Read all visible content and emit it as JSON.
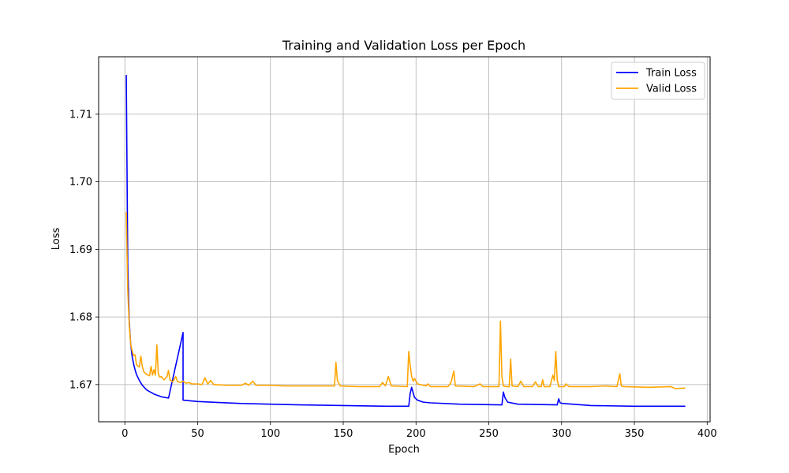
{
  "chart_data": {
    "type": "line",
    "title": "Training and Validation Loss per Epoch",
    "xlabel": "Epoch",
    "ylabel": "Loss",
    "xlim": [
      -18,
      402
    ],
    "ylim": [
      1.6645,
      1.7185
    ],
    "x_ticks": [
      0,
      50,
      100,
      150,
      200,
      250,
      300,
      350,
      400
    ],
    "y_ticks": [
      1.67,
      1.68,
      1.69,
      1.7,
      1.71
    ],
    "grid": true,
    "legend_position": "top-right",
    "series": [
      {
        "name": "Train Loss",
        "color": "#0000ff",
        "points": [
          [
            1,
            1.7158
          ],
          [
            2,
            1.688
          ],
          [
            3,
            1.6795
          ],
          [
            4,
            1.676
          ],
          [
            5,
            1.6742
          ],
          [
            6,
            1.6731
          ],
          [
            7,
            1.6722
          ],
          [
            8,
            1.6715
          ],
          [
            10,
            1.6706
          ],
          [
            12,
            1.6699
          ],
          [
            15,
            1.6692
          ],
          [
            20,
            1.6686
          ],
          [
            25,
            1.6682
          ],
          [
            30,
            1.668
          ],
          [
            40,
            1.6777
          ],
          [
            40,
            1.6677
          ],
          [
            50,
            1.6675
          ],
          [
            60,
            1.6674
          ],
          [
            80,
            1.6672
          ],
          [
            100,
            1.6671
          ],
          [
            120,
            1.667
          ],
          [
            150,
            1.6669
          ],
          [
            180,
            1.6668
          ],
          [
            194,
            1.6668
          ],
          [
            195,
            1.6668
          ],
          [
            196,
            1.6687
          ],
          [
            197,
            1.6696
          ],
          [
            198,
            1.6688
          ],
          [
            199,
            1.6681
          ],
          [
            201,
            1.6677
          ],
          [
            205,
            1.6674
          ],
          [
            210,
            1.6673
          ],
          [
            230,
            1.6671
          ],
          [
            258,
            1.667
          ],
          [
            259,
            1.667
          ],
          [
            260,
            1.6689
          ],
          [
            261,
            1.6681
          ],
          [
            263,
            1.6674
          ],
          [
            270,
            1.6671
          ],
          [
            297,
            1.667
          ],
          [
            298,
            1.6679
          ],
          [
            299,
            1.6673
          ],
          [
            301,
            1.6672
          ],
          [
            320,
            1.6669
          ],
          [
            350,
            1.6668
          ],
          [
            385,
            1.6668
          ]
        ]
      },
      {
        "name": "Valid Loss",
        "color": "#ffa500",
        "points": [
          [
            1,
            1.6955
          ],
          [
            2,
            1.684
          ],
          [
            3,
            1.679
          ],
          [
            4,
            1.676
          ],
          [
            5,
            1.675
          ],
          [
            6,
            1.6743
          ],
          [
            7,
            1.6744
          ],
          [
            8,
            1.673
          ],
          [
            9,
            1.6727
          ],
          [
            10,
            1.6726
          ],
          [
            11,
            1.6742
          ],
          [
            12,
            1.6727
          ],
          [
            13,
            1.6719
          ],
          [
            15,
            1.6715
          ],
          [
            17,
            1.6713
          ],
          [
            18,
            1.6727
          ],
          [
            19,
            1.6714
          ],
          [
            20,
            1.6722
          ],
          [
            21,
            1.6714
          ],
          [
            22,
            1.6759
          ],
          [
            23,
            1.6716
          ],
          [
            24,
            1.6711
          ],
          [
            25,
            1.6712
          ],
          [
            27,
            1.6707
          ],
          [
            29,
            1.6712
          ],
          [
            30,
            1.6721
          ],
          [
            31,
            1.6707
          ],
          [
            33,
            1.6704
          ],
          [
            35,
            1.6712
          ],
          [
            36,
            1.6705
          ],
          [
            38,
            1.6703
          ],
          [
            40,
            1.6705
          ],
          [
            42,
            1.6702
          ],
          [
            44,
            1.6703
          ],
          [
            46,
            1.6701
          ],
          [
            50,
            1.6701
          ],
          [
            53,
            1.67
          ],
          [
            55,
            1.671
          ],
          [
            57,
            1.6701
          ],
          [
            59,
            1.6706
          ],
          [
            61,
            1.67
          ],
          [
            70,
            1.6699
          ],
          [
            80,
            1.6699
          ],
          [
            83,
            1.6702
          ],
          [
            85,
            1.6699
          ],
          [
            88,
            1.6705
          ],
          [
            90,
            1.6699
          ],
          [
            100,
            1.6699
          ],
          [
            110,
            1.6698
          ],
          [
            128,
            1.6698
          ],
          [
            140,
            1.6698
          ],
          [
            144,
            1.6698
          ],
          [
            145,
            1.6733
          ],
          [
            146,
            1.6706
          ],
          [
            148,
            1.6698
          ],
          [
            160,
            1.6697
          ],
          [
            175,
            1.6697
          ],
          [
            177,
            1.6703
          ],
          [
            179,
            1.6698
          ],
          [
            181,
            1.6712
          ],
          [
            183,
            1.6698
          ],
          [
            194,
            1.6697
          ],
          [
            195,
            1.6749
          ],
          [
            196,
            1.6728
          ],
          [
            197,
            1.6712
          ],
          [
            198,
            1.6705
          ],
          [
            199,
            1.6709
          ],
          [
            201,
            1.6701
          ],
          [
            207,
            1.6698
          ],
          [
            208,
            1.6701
          ],
          [
            210,
            1.6697
          ],
          [
            222,
            1.6697
          ],
          [
            224,
            1.6703
          ],
          [
            226,
            1.672
          ],
          [
            227,
            1.6698
          ],
          [
            240,
            1.6697
          ],
          [
            244,
            1.6701
          ],
          [
            246,
            1.6697
          ],
          [
            256,
            1.6697
          ],
          [
            257,
            1.6697
          ],
          [
            258,
            1.6794
          ],
          [
            259,
            1.6712
          ],
          [
            260,
            1.6698
          ],
          [
            262,
            1.6697
          ],
          [
            264,
            1.6697
          ],
          [
            265,
            1.6738
          ],
          [
            266,
            1.6698
          ],
          [
            270,
            1.6697
          ],
          [
            272,
            1.6705
          ],
          [
            274,
            1.6697
          ],
          [
            280,
            1.6697
          ],
          [
            282,
            1.6704
          ],
          [
            284,
            1.6697
          ],
          [
            286,
            1.6697
          ],
          [
            287,
            1.6707
          ],
          [
            288,
            1.6697
          ],
          [
            292,
            1.6697
          ],
          [
            294,
            1.6714
          ],
          [
            295,
            1.6706
          ],
          [
            296,
            1.6749
          ],
          [
            297,
            1.6707
          ],
          [
            298,
            1.6697
          ],
          [
            300,
            1.6697
          ],
          [
            302,
            1.6697
          ],
          [
            303,
            1.6701
          ],
          [
            305,
            1.6697
          ],
          [
            320,
            1.6697
          ],
          [
            330,
            1.6698
          ],
          [
            338,
            1.6697
          ],
          [
            340,
            1.6716
          ],
          [
            341,
            1.6698
          ],
          [
            343,
            1.6697
          ],
          [
            360,
            1.6696
          ],
          [
            375,
            1.6697
          ],
          [
            378,
            1.6694
          ],
          [
            385,
            1.6695
          ]
        ]
      }
    ]
  }
}
